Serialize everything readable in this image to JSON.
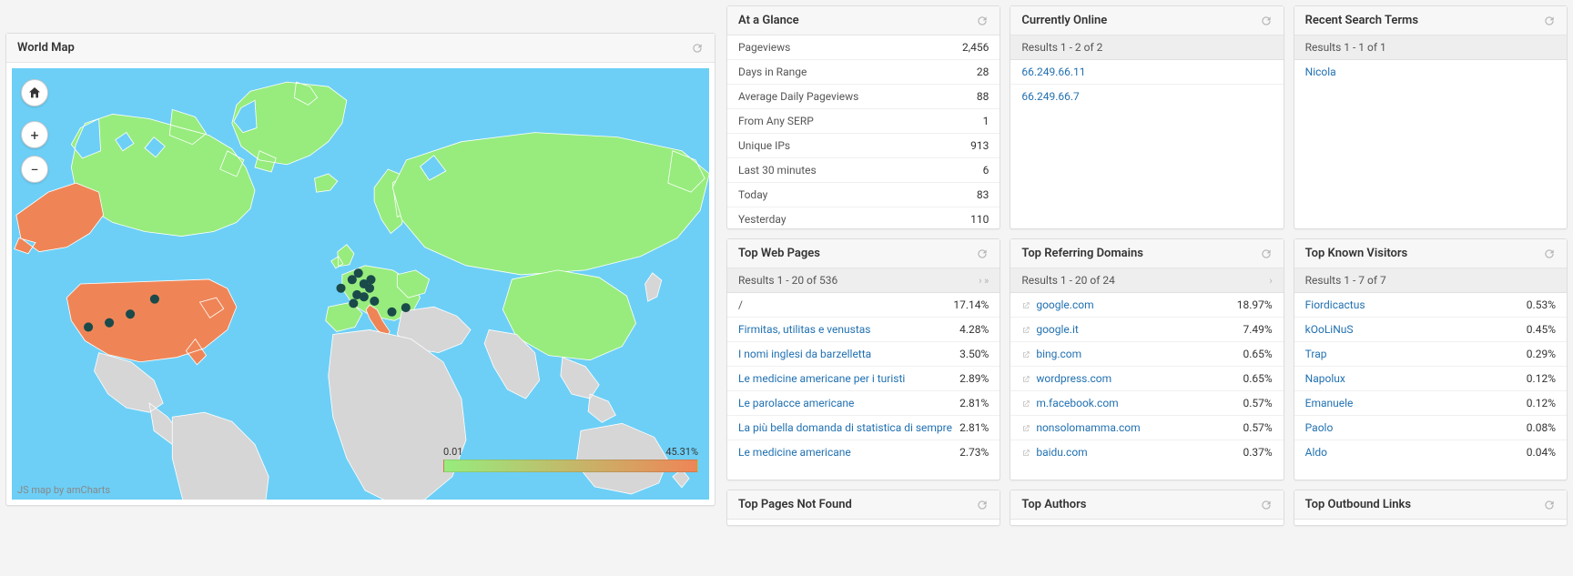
{
  "map": {
    "title": "World Map",
    "credit": "JS map by amCharts",
    "legend_min": "0.01",
    "legend_max": "45.31%",
    "colors": {
      "ocean": "#6dcff6",
      "land_default": "#d6d6d6",
      "green": "#97ec7d",
      "orange": "#ef8557",
      "marker": "#1a4a4a"
    },
    "highlighted": {
      "green": [
        "Canada",
        "Greenland",
        "Russia",
        "China",
        "EuropeSmall",
        "UK",
        "Scandinavia"
      ],
      "orange": [
        "USA",
        "Italy",
        "Alaska"
      ]
    },
    "markers": [
      [
        0.17,
        0.57
      ],
      [
        0.14,
        0.59
      ],
      [
        0.11,
        0.6
      ],
      [
        0.205,
        0.535
      ],
      [
        0.472,
        0.51
      ],
      [
        0.488,
        0.49
      ],
      [
        0.497,
        0.475
      ],
      [
        0.505,
        0.5
      ],
      [
        0.505,
        0.53
      ],
      [
        0.513,
        0.51
      ],
      [
        0.52,
        0.54
      ],
      [
        0.495,
        0.525
      ],
      [
        0.49,
        0.545
      ],
      [
        0.515,
        0.49
      ],
      [
        0.545,
        0.565
      ],
      [
        0.565,
        0.555
      ]
    ]
  },
  "at_a_glance": {
    "title": "At a Glance",
    "rows": [
      {
        "label": "Pageviews",
        "value": "2,456"
      },
      {
        "label": "Days in Range",
        "value": "28"
      },
      {
        "label": "Average Daily Pageviews",
        "value": "88"
      },
      {
        "label": "From Any SERP",
        "value": "1"
      },
      {
        "label": "Unique IPs",
        "value": "913"
      },
      {
        "label": "Last 30 minutes",
        "value": "6"
      },
      {
        "label": "Today",
        "value": "83"
      },
      {
        "label": "Yesterday",
        "value": "110"
      }
    ]
  },
  "currently_online": {
    "title": "Currently Online",
    "results": "Results 1 - 2 of 2",
    "items": [
      "66.249.66.11",
      "66.249.66.7"
    ]
  },
  "recent_search": {
    "title": "Recent Search Terms",
    "results": "Results 1 - 1 of 1",
    "items": [
      "Nicola"
    ]
  },
  "top_web_pages": {
    "title": "Top Web Pages",
    "results": "Results 1 - 20 of 536",
    "rows": [
      {
        "label": "/",
        "value": "17.14%",
        "link": false
      },
      {
        "label": "Firmitas, utilitas e venustas",
        "value": "4.28%",
        "link": true
      },
      {
        "label": "I nomi inglesi da barzelletta",
        "value": "3.50%",
        "link": true
      },
      {
        "label": "Le medicine americane per i turisti",
        "value": "2.89%",
        "link": true
      },
      {
        "label": "Le parolacce americane",
        "value": "2.81%",
        "link": true
      },
      {
        "label": "La più bella domanda di statistica di sempre",
        "value": "2.81%",
        "link": true
      },
      {
        "label": "Le medicine americane",
        "value": "2.73%",
        "link": true
      }
    ]
  },
  "top_referring": {
    "title": "Top Referring Domains",
    "results": "Results 1 - 20 of 24",
    "rows": [
      {
        "label": "google.com",
        "value": "18.97%"
      },
      {
        "label": "google.it",
        "value": "7.49%"
      },
      {
        "label": "bing.com",
        "value": "0.65%"
      },
      {
        "label": "wordpress.com",
        "value": "0.65%"
      },
      {
        "label": "m.facebook.com",
        "value": "0.57%"
      },
      {
        "label": "nonsolomamma.com",
        "value": "0.57%"
      },
      {
        "label": "baidu.com",
        "value": "0.37%"
      }
    ]
  },
  "top_known": {
    "title": "Top Known Visitors",
    "results": "Results 1 - 7 of 7",
    "rows": [
      {
        "label": "Fiordicactus",
        "value": "0.53%"
      },
      {
        "label": "kOoLiNuS",
        "value": "0.45%"
      },
      {
        "label": "Trap",
        "value": "0.29%"
      },
      {
        "label": "Napolux",
        "value": "0.12%"
      },
      {
        "label": "Emanuele",
        "value": "0.12%"
      },
      {
        "label": "Paolo",
        "value": "0.08%"
      },
      {
        "label": "Aldo",
        "value": "0.04%"
      }
    ]
  },
  "bottom_panels": [
    "Top Pages Not Found",
    "Top Authors",
    "Top Outbound Links"
  ]
}
